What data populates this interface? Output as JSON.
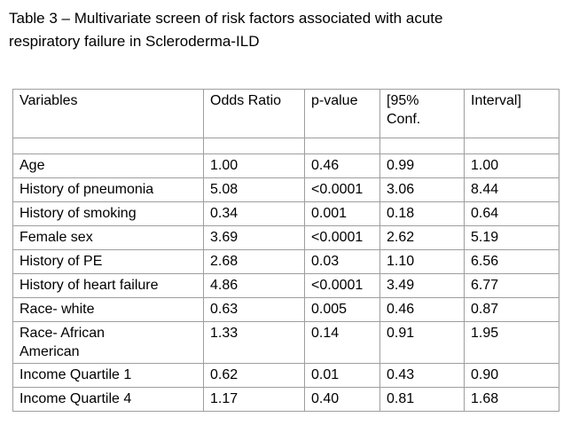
{
  "page": {
    "caption": "Table 3 – Multivariate screen of risk factors associated with acute\nrespiratory failure in Scleroderma-ILD"
  },
  "table": {
    "columns": {
      "variables": "Variables",
      "odds_ratio": "Odds Ratio",
      "p_value": "p-value",
      "conf_low": "[95%\nConf.",
      "conf_high": "Interval]"
    },
    "rows": [
      {
        "variable": "Age",
        "odds_ratio": "1.00",
        "p_value": "0.46",
        "conf_low": "0.99",
        "conf_high": "1.00"
      },
      {
        "variable": "History of pneumonia",
        "odds_ratio": "5.08",
        "p_value": "<0.0001",
        "conf_low": "3.06",
        "conf_high": "8.44"
      },
      {
        "variable": "History of smoking",
        "odds_ratio": "0.34",
        "p_value": "0.001",
        "conf_low": "0.18",
        "conf_high": "0.64"
      },
      {
        "variable": "Female sex",
        "odds_ratio": "3.69",
        "p_value": "<0.0001",
        "conf_low": "2.62",
        "conf_high": "5.19"
      },
      {
        "variable": "History of PE",
        "odds_ratio": "2.68",
        "p_value": "0.03",
        "conf_low": "1.10",
        "conf_high": "6.56"
      },
      {
        "variable": "History of heart failure",
        "odds_ratio": "4.86",
        "p_value": "<0.0001",
        "conf_low": "3.49",
        "conf_high": "6.77"
      },
      {
        "variable": "Race- white",
        "odds_ratio": "0.63",
        "p_value": "0.005",
        "conf_low": "0.46",
        "conf_high": "0.87"
      },
      {
        "variable": "Race- African\nAmerican",
        "odds_ratio": "1.33",
        "p_value": "0.14",
        "conf_low": "0.91",
        "conf_high": "1.95"
      },
      {
        "variable": "Income Quartile 1",
        "odds_ratio": "0.62",
        "p_value": "0.01",
        "conf_low": "0.43",
        "conf_high": "0.90"
      },
      {
        "variable": "Income Quartile 4",
        "odds_ratio": "1.17",
        "p_value": "0.40",
        "conf_low": "0.81",
        "conf_high": "1.68"
      }
    ]
  },
  "colors": {
    "background": "#ffffff",
    "text": "#000000",
    "table_border": "#9e9e9e"
  }
}
